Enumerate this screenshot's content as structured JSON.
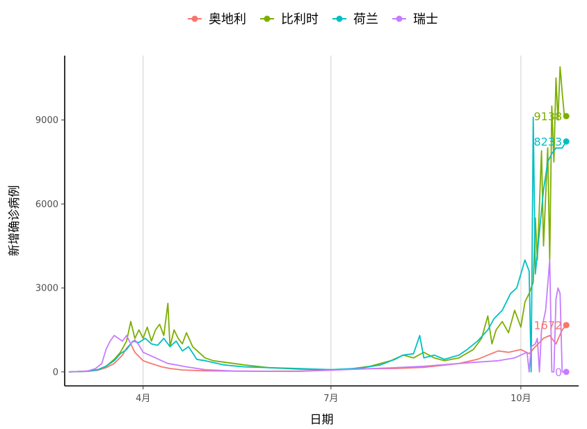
{
  "chart_data": {
    "type": "line",
    "title": "",
    "xlabel": "日期",
    "ylabel": "新增确诊病例",
    "x_ticks": [
      {
        "date": "2020-04-01",
        "label": "4月"
      },
      {
        "date": "2020-07-01",
        "label": "7月"
      },
      {
        "date": "2020-10-01",
        "label": "10月"
      }
    ],
    "y_ticks": [
      0,
      3000,
      6000,
      9000
    ],
    "xlim": [
      "2020-02-23",
      "2020-10-29"
    ],
    "ylim": [
      -500,
      11300
    ],
    "grid": "vertical major lines at x ticks",
    "legend_position": "top",
    "series": [
      {
        "name": "奥地利",
        "color": "#F8766D",
        "end_label": "1672",
        "points": [
          [
            "2020-02-25",
            0
          ],
          [
            "2020-03-05",
            20
          ],
          [
            "2020-03-10",
            60
          ],
          [
            "2020-03-14",
            150
          ],
          [
            "2020-03-18",
            300
          ],
          [
            "2020-03-22",
            600
          ],
          [
            "2020-03-24",
            850
          ],
          [
            "2020-03-26",
            1000
          ],
          [
            "2020-03-28",
            700
          ],
          [
            "2020-03-30",
            550
          ],
          [
            "2020-04-01",
            400
          ],
          [
            "2020-04-04",
            320
          ],
          [
            "2020-04-07",
            250
          ],
          [
            "2020-04-10",
            180
          ],
          [
            "2020-04-14",
            120
          ],
          [
            "2020-04-20",
            70
          ],
          [
            "2020-05-01",
            40
          ],
          [
            "2020-05-15",
            30
          ],
          [
            "2020-06-01",
            25
          ],
          [
            "2020-06-15",
            30
          ],
          [
            "2020-07-01",
            70
          ],
          [
            "2020-07-15",
            110
          ],
          [
            "2020-08-01",
            120
          ],
          [
            "2020-08-15",
            160
          ],
          [
            "2020-09-01",
            300
          ],
          [
            "2020-09-10",
            450
          ],
          [
            "2020-09-15",
            600
          ],
          [
            "2020-09-20",
            750
          ],
          [
            "2020-09-25",
            700
          ],
          [
            "2020-10-01",
            800
          ],
          [
            "2020-10-05",
            650
          ],
          [
            "2020-10-08",
            900
          ],
          [
            "2020-10-12",
            1200
          ],
          [
            "2020-10-15",
            1300
          ],
          [
            "2020-10-18",
            1000
          ],
          [
            "2020-10-21",
            1500
          ],
          [
            "2020-10-23",
            1672
          ]
        ]
      },
      {
        "name": "比利时",
        "color": "#7CAE00",
        "end_label": "9138",
        "points": [
          [
            "2020-02-25",
            0
          ],
          [
            "2020-03-05",
            30
          ],
          [
            "2020-03-10",
            80
          ],
          [
            "2020-03-14",
            200
          ],
          [
            "2020-03-18",
            450
          ],
          [
            "2020-03-21",
            700
          ],
          [
            "2020-03-24",
            1100
          ],
          [
            "2020-03-26",
            1800
          ],
          [
            "2020-03-28",
            1200
          ],
          [
            "2020-03-30",
            1500
          ],
          [
            "2020-04-01",
            1200
          ],
          [
            "2020-04-03",
            1600
          ],
          [
            "2020-04-05",
            1100
          ],
          [
            "2020-04-07",
            1500
          ],
          [
            "2020-04-09",
            1700
          ],
          [
            "2020-04-11",
            1300
          ],
          [
            "2020-04-13",
            2450
          ],
          [
            "2020-04-14",
            900
          ],
          [
            "2020-04-16",
            1500
          ],
          [
            "2020-04-18",
            1200
          ],
          [
            "2020-04-20",
            1000
          ],
          [
            "2020-04-22",
            1400
          ],
          [
            "2020-04-25",
            900
          ],
          [
            "2020-04-28",
            700
          ],
          [
            "2020-05-01",
            500
          ],
          [
            "2020-05-05",
            400
          ],
          [
            "2020-05-10",
            350
          ],
          [
            "2020-05-15",
            300
          ],
          [
            "2020-05-20",
            250
          ],
          [
            "2020-06-01",
            150
          ],
          [
            "2020-06-15",
            100
          ],
          [
            "2020-07-01",
            80
          ],
          [
            "2020-07-10",
            100
          ],
          [
            "2020-07-20",
            200
          ],
          [
            "2020-07-30",
            400
          ],
          [
            "2020-08-05",
            600
          ],
          [
            "2020-08-10",
            500
          ],
          [
            "2020-08-15",
            700
          ],
          [
            "2020-08-20",
            500
          ],
          [
            "2020-08-25",
            400
          ],
          [
            "2020-09-01",
            500
          ],
          [
            "2020-09-08",
            800
          ],
          [
            "2020-09-12",
            1200
          ],
          [
            "2020-09-15",
            2000
          ],
          [
            "2020-09-17",
            1000
          ],
          [
            "2020-09-19",
            1500
          ],
          [
            "2020-09-22",
            1800
          ],
          [
            "2020-09-25",
            1400
          ],
          [
            "2020-09-28",
            2200
          ],
          [
            "2020-10-01",
            1600
          ],
          [
            "2020-10-03",
            2500
          ],
          [
            "2020-10-05",
            2800
          ],
          [
            "2020-10-07",
            3200
          ],
          [
            "2020-10-08",
            5500
          ],
          [
            "2020-10-09",
            4000
          ],
          [
            "2020-10-11",
            7900
          ],
          [
            "2020-10-12",
            4500
          ],
          [
            "2020-10-14",
            8000
          ],
          [
            "2020-10-15",
            4000
          ],
          [
            "2020-10-16",
            9500
          ],
          [
            "2020-10-17",
            7500
          ],
          [
            "2020-10-18",
            10500
          ],
          [
            "2020-10-19",
            9000
          ],
          [
            "2020-10-20",
            10900
          ],
          [
            "2020-10-21",
            10000
          ],
          [
            "2020-10-22",
            9200
          ],
          [
            "2020-10-23",
            9138
          ]
        ]
      },
      {
        "name": "荷兰",
        "color": "#00BFC4",
        "end_label": "8233",
        "points": [
          [
            "2020-02-25",
            0
          ],
          [
            "2020-03-05",
            20
          ],
          [
            "2020-03-10",
            80
          ],
          [
            "2020-03-14",
            200
          ],
          [
            "2020-03-18",
            400
          ],
          [
            "2020-03-21",
            650
          ],
          [
            "2020-03-24",
            800
          ],
          [
            "2020-03-27",
            1100
          ],
          [
            "2020-03-30",
            1050
          ],
          [
            "2020-04-02",
            1200
          ],
          [
            "2020-04-05",
            1000
          ],
          [
            "2020-04-08",
            950
          ],
          [
            "2020-04-11",
            1200
          ],
          [
            "2020-04-14",
            900
          ],
          [
            "2020-04-17",
            1100
          ],
          [
            "2020-04-20",
            750
          ],
          [
            "2020-04-23",
            900
          ],
          [
            "2020-04-27",
            450
          ],
          [
            "2020-05-01",
            400
          ],
          [
            "2020-05-10",
            250
          ],
          [
            "2020-05-20",
            180
          ],
          [
            "2020-06-01",
            150
          ],
          [
            "2020-06-15",
            120
          ],
          [
            "2020-07-01",
            80
          ],
          [
            "2020-07-15",
            130
          ],
          [
            "2020-07-25",
            250
          ],
          [
            "2020-08-01",
            450
          ],
          [
            "2020-08-05",
            600
          ],
          [
            "2020-08-10",
            650
          ],
          [
            "2020-08-13",
            1300
          ],
          [
            "2020-08-15",
            500
          ],
          [
            "2020-08-20",
            600
          ],
          [
            "2020-08-25",
            450
          ],
          [
            "2020-09-01",
            600
          ],
          [
            "2020-09-05",
            800
          ],
          [
            "2020-09-10",
            1100
          ],
          [
            "2020-09-15",
            1500
          ],
          [
            "2020-09-18",
            1900
          ],
          [
            "2020-09-22",
            2200
          ],
          [
            "2020-09-26",
            2800
          ],
          [
            "2020-09-29",
            3000
          ],
          [
            "2020-10-01",
            3500
          ],
          [
            "2020-10-03",
            4000
          ],
          [
            "2020-10-05",
            3600
          ],
          [
            "2020-10-06",
            0
          ],
          [
            "2020-10-07",
            9100
          ],
          [
            "2020-10-08",
            3500
          ],
          [
            "2020-10-10",
            5000
          ],
          [
            "2020-10-12",
            6500
          ],
          [
            "2020-10-14",
            7500
          ],
          [
            "2020-10-16",
            7800
          ],
          [
            "2020-10-18",
            8000
          ],
          [
            "2020-10-21",
            8000
          ],
          [
            "2020-10-23",
            8233
          ]
        ]
      },
      {
        "name": "瑞士",
        "color": "#C77CFF",
        "end_label": "0",
        "points": [
          [
            "2020-02-25",
            0
          ],
          [
            "2020-03-05",
            30
          ],
          [
            "2020-03-09",
            120
          ],
          [
            "2020-03-12",
            300
          ],
          [
            "2020-03-14",
            800
          ],
          [
            "2020-03-16",
            1100
          ],
          [
            "2020-03-18",
            1300
          ],
          [
            "2020-03-20",
            1200
          ],
          [
            "2020-03-22",
            1100
          ],
          [
            "2020-03-24",
            1300
          ],
          [
            "2020-03-26",
            1000
          ],
          [
            "2020-03-28",
            1150
          ],
          [
            "2020-03-30",
            950
          ],
          [
            "2020-04-01",
            700
          ],
          [
            "2020-04-04",
            600
          ],
          [
            "2020-04-07",
            500
          ],
          [
            "2020-04-10",
            400
          ],
          [
            "2020-04-13",
            300
          ],
          [
            "2020-04-17",
            250
          ],
          [
            "2020-04-22",
            180
          ],
          [
            "2020-05-01",
            80
          ],
          [
            "2020-05-15",
            30
          ],
          [
            "2020-06-01",
            20
          ],
          [
            "2020-06-15",
            20
          ],
          [
            "2020-07-01",
            60
          ],
          [
            "2020-07-15",
            100
          ],
          [
            "2020-08-01",
            150
          ],
          [
            "2020-08-15",
            200
          ],
          [
            "2020-09-01",
            300
          ],
          [
            "2020-09-10",
            350
          ],
          [
            "2020-09-20",
            400
          ],
          [
            "2020-09-28",
            500
          ],
          [
            "2020-10-01",
            600
          ],
          [
            "2020-10-04",
            700
          ],
          [
            "2020-10-05",
            0
          ],
          [
            "2020-10-06",
            900
          ],
          [
            "2020-10-08",
            1000
          ],
          [
            "2020-10-09",
            1200
          ],
          [
            "2020-10-10",
            0
          ],
          [
            "2020-10-11",
            1500
          ],
          [
            "2020-10-13",
            2200
          ],
          [
            "2020-10-14",
            3100
          ],
          [
            "2020-10-15",
            4000
          ],
          [
            "2020-10-16",
            0
          ],
          [
            "2020-10-17",
            0
          ],
          [
            "2020-10-18",
            2600
          ],
          [
            "2020-10-19",
            3000
          ],
          [
            "2020-10-20",
            2800
          ],
          [
            "2020-10-21",
            0
          ],
          [
            "2020-10-23",
            0
          ]
        ]
      }
    ]
  }
}
